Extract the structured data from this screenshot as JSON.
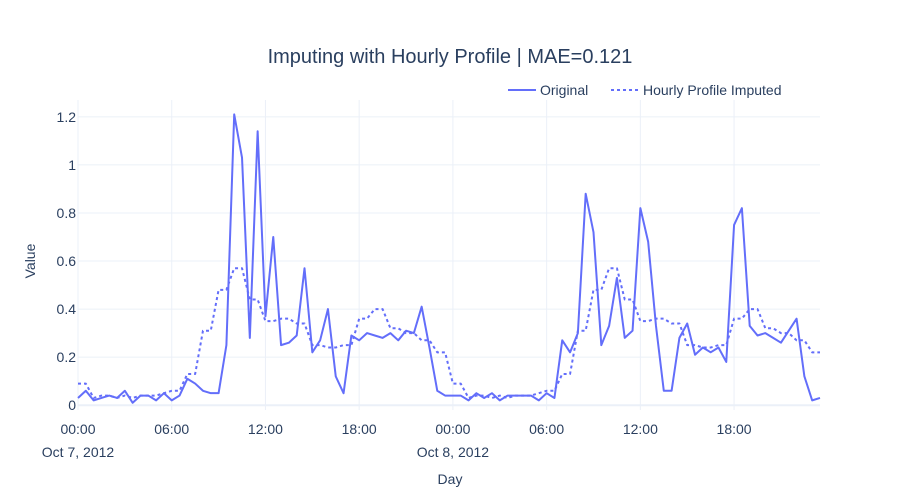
{
  "chart_data": {
    "type": "line",
    "title": "Imputing with Hourly Profile | MAE=0.121",
    "xlabel": "Day",
    "ylabel": "Value",
    "ylim": [
      -0.02,
      1.27
    ],
    "x_start": "2012-10-07 00:00",
    "x_end": "2012-10-08 23:00",
    "x_step": "30 min",
    "x_ticks": [
      {
        "label": "00:00",
        "sublabel": "Oct 7, 2012",
        "hour": 0
      },
      {
        "label": "06:00",
        "sublabel": "",
        "hour": 6
      },
      {
        "label": "12:00",
        "sublabel": "",
        "hour": 12
      },
      {
        "label": "18:00",
        "sublabel": "",
        "hour": 18
      },
      {
        "label": "00:00",
        "sublabel": "Oct 8, 2012",
        "hour": 24
      },
      {
        "label": "06:00",
        "sublabel": "",
        "hour": 30
      },
      {
        "label": "12:00",
        "sublabel": "",
        "hour": 36
      },
      {
        "label": "18:00",
        "sublabel": "",
        "hour": 42
      }
    ],
    "y_ticks": [
      {
        "label": "0",
        "value": 0
      },
      {
        "label": "0.2",
        "value": 0.2
      },
      {
        "label": "0.4",
        "value": 0.4
      },
      {
        "label": "0.6",
        "value": 0.6
      },
      {
        "label": "0.8",
        "value": 0.8
      },
      {
        "label": "1",
        "value": 1
      },
      {
        "label": "1.2",
        "value": 1.2
      }
    ],
    "grid": true,
    "legend_position": "top-right",
    "series": [
      {
        "name": "Original",
        "style": "solid",
        "color": "#636efa",
        "values": [
          0.03,
          0.06,
          0.02,
          0.03,
          0.04,
          0.03,
          0.06,
          0.01,
          0.04,
          0.04,
          0.02,
          0.05,
          0.02,
          0.04,
          0.11,
          0.09,
          0.06,
          0.05,
          0.05,
          0.25,
          1.21,
          1.03,
          0.28,
          1.14,
          0.37,
          0.7,
          0.25,
          0.26,
          0.29,
          0.57,
          0.22,
          0.27,
          0.4,
          0.12,
          0.05,
          0.29,
          0.27,
          0.3,
          0.29,
          0.28,
          0.3,
          0.27,
          0.31,
          0.3,
          0.41,
          0.24,
          0.06,
          0.04,
          0.04,
          0.04,
          0.02,
          0.05,
          0.03,
          0.05,
          0.02,
          0.04,
          0.04,
          0.04,
          0.04,
          0.02,
          0.05,
          0.03,
          0.27,
          0.22,
          0.3,
          0.88,
          0.72,
          0.25,
          0.33,
          0.53,
          0.28,
          0.31,
          0.82,
          0.68,
          0.33,
          0.06,
          0.06,
          0.28,
          0.34,
          0.21,
          0.24,
          0.22,
          0.24,
          0.18,
          0.75,
          0.82,
          0.33,
          0.29,
          0.3,
          0.28,
          0.26,
          0.31,
          0.36,
          0.12,
          0.02,
          0.03
        ]
      },
      {
        "name": "Hourly Profile Imputed",
        "style": "dot",
        "color": "#636efa",
        "values": [
          0.09,
          0.09,
          0.03,
          0.04,
          0.04,
          0.03,
          0.04,
          0.03,
          0.04,
          0.04,
          0.04,
          0.05,
          0.06,
          0.06,
          0.13,
          0.13,
          0.31,
          0.31,
          0.48,
          0.48,
          0.57,
          0.57,
          0.44,
          0.44,
          0.35,
          0.35,
          0.36,
          0.36,
          0.34,
          0.34,
          0.25,
          0.25,
          0.24,
          0.24,
          0.25,
          0.25,
          0.36,
          0.36,
          0.4,
          0.4,
          0.32,
          0.32,
          0.3,
          0.3,
          0.27,
          0.27,
          0.22,
          0.22,
          0.09,
          0.09,
          0.03,
          0.04,
          0.04,
          0.03,
          0.04,
          0.03,
          0.04,
          0.04,
          0.04,
          0.05,
          0.06,
          0.06,
          0.13,
          0.13,
          0.31,
          0.31,
          0.48,
          0.48,
          0.57,
          0.57,
          0.44,
          0.44,
          0.35,
          0.35,
          0.36,
          0.36,
          0.34,
          0.34,
          0.25,
          0.25,
          0.24,
          0.24,
          0.25,
          0.25,
          0.36,
          0.36,
          0.4,
          0.4,
          0.32,
          0.32,
          0.3,
          0.3,
          0.27,
          0.27,
          0.22,
          0.22
        ]
      }
    ]
  }
}
